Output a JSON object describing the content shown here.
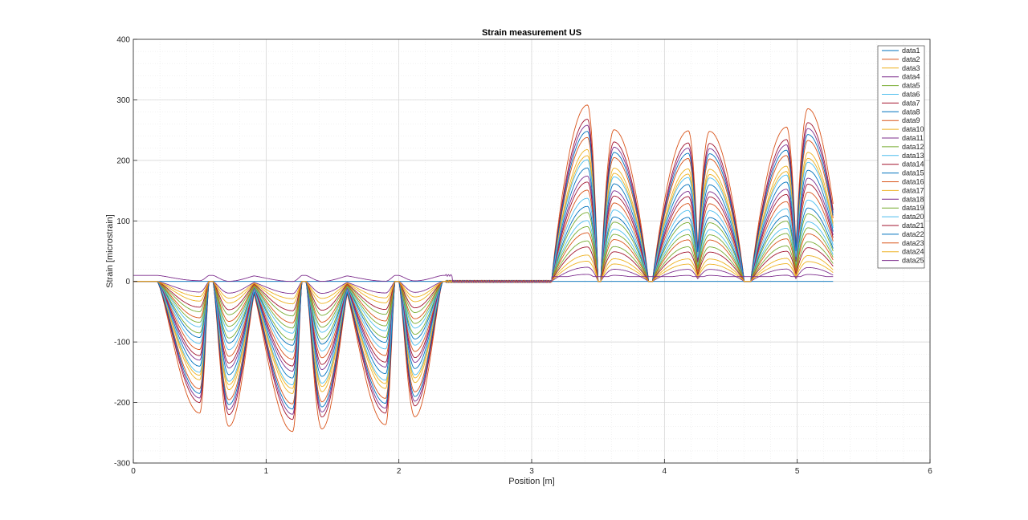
{
  "chart_data": {
    "type": "line",
    "title": "Strain measurement US",
    "xlabel": "Position [m]",
    "ylabel": "Strain [microstrain]",
    "xlim": [
      0,
      6
    ],
    "ylim": [
      -300,
      400
    ],
    "xticks": [
      "0",
      "1",
      "2",
      "3",
      "4",
      "5",
      "6"
    ],
    "yticks": [
      "400",
      "300",
      "200",
      "100",
      "0",
      "-100",
      "-200",
      "-300"
    ],
    "grid": "major and minor",
    "legend_position": "top-right",
    "colors": [
      "#0072BD",
      "#D95319",
      "#EDB120",
      "#7E2F8E",
      "#77AC30",
      "#4DBEEE",
      "#A2142F"
    ],
    "x_range_of_data": [
      0,
      5.27
    ],
    "negative_peaks_x": [
      0.5,
      0.72,
      1.2,
      1.42,
      1.9,
      2.12
    ],
    "positive_peaks_x": [
      3.42,
      3.62,
      4.18,
      4.34,
      4.92,
      5.08
    ],
    "series_names": [
      "data1",
      "data2",
      "data3",
      "data4",
      "data5",
      "data6",
      "data7",
      "data8",
      "data9",
      "data10",
      "data11",
      "data12",
      "data13",
      "data14",
      "data15",
      "data16",
      "data17",
      "data18",
      "data19",
      "data20",
      "data21",
      "data22",
      "data23",
      "data24",
      "data25"
    ],
    "peak_scale": [
      0,
      0.87,
      0.1,
      0.07,
      0.2,
      0.3,
      0.17,
      0.37,
      0.45,
      0.62,
      0.77,
      0.27,
      0.41,
      0.49,
      0.56,
      0.71,
      0.65,
      0.52,
      0.34,
      0.6,
      0.8,
      0.74,
      0.24,
      0.13,
      0.035
    ],
    "negative_peak_max": [
      -250,
      -275,
      -285,
      -280,
      -272,
      -257
    ],
    "positive_peak_max": [
      335,
      288,
      286,
      285,
      293,
      328
    ]
  }
}
